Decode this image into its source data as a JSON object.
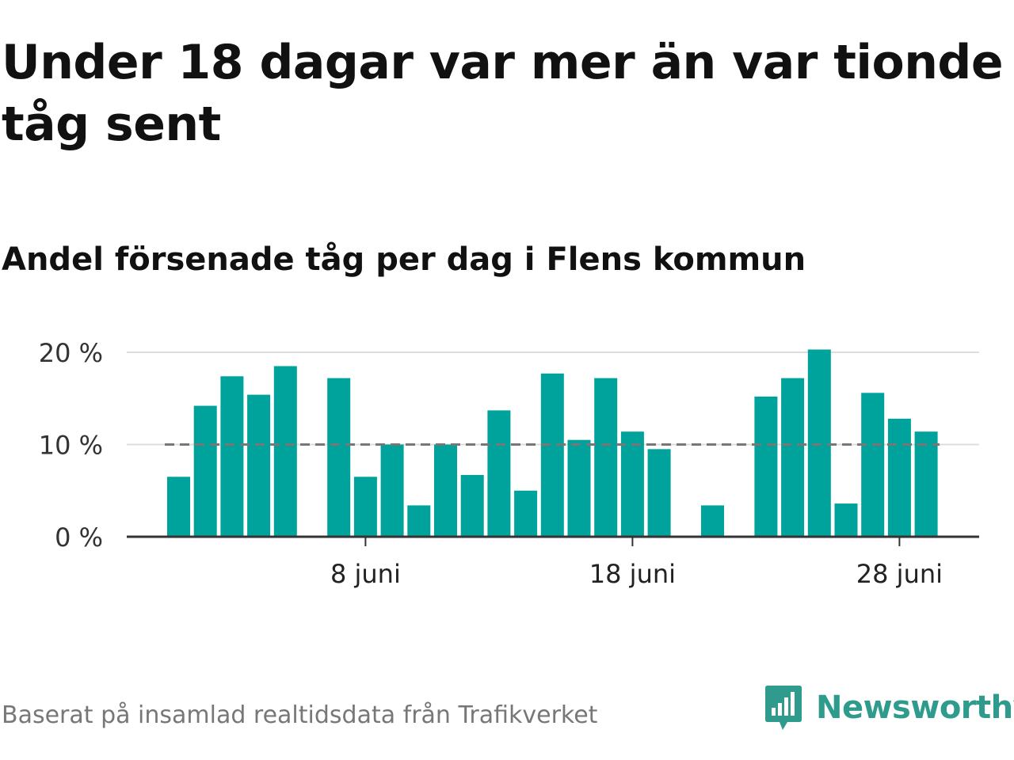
{
  "header": {
    "title": "Under 18 dagar var mer än var tionde tåg sent",
    "subtitle": "Andel försenade tåg per dag i Flens kommun"
  },
  "footer": {
    "source": "Baserat på insamlad realtidsdata från Trafikverket",
    "brand": "Newsworthy"
  },
  "colors": {
    "bar": "#00a39b",
    "reference_line": "#777777",
    "grid": "#dddddd",
    "axis": "#333333",
    "brand": "#2e9b8c"
  },
  "chart_data": {
    "type": "bar",
    "title": "Andel försenade tåg per dag i Flens kommun",
    "xlabel": "",
    "ylabel": "",
    "categories": [
      1,
      2,
      3,
      4,
      5,
      6,
      7,
      8,
      9,
      10,
      11,
      12,
      13,
      14,
      15,
      16,
      17,
      18,
      19,
      20,
      21,
      22,
      23,
      24,
      25,
      26,
      27,
      28,
      29
    ],
    "values": [
      6.5,
      14.2,
      17.4,
      15.4,
      18.5,
      null,
      17.2,
      6.5,
      10.0,
      3.4,
      10.0,
      6.7,
      13.7,
      5.0,
      17.7,
      10.5,
      17.2,
      11.4,
      9.5,
      null,
      3.4,
      null,
      15.2,
      17.2,
      20.3,
      3.6,
      15.6,
      12.8,
      11.4
    ],
    "reference_line": 10,
    "ylim": [
      0,
      20.5
    ],
    "yticks": [
      {
        "value": 0,
        "label": "0 %"
      },
      {
        "value": 10,
        "label": "10 %"
      },
      {
        "value": 20,
        "label": "20 %"
      }
    ],
    "xticks": [
      {
        "day": 8,
        "label": "8 juni"
      },
      {
        "day": 18,
        "label": "18 juni"
      },
      {
        "day": 28,
        "label": "28 juni"
      }
    ],
    "grid": true
  }
}
